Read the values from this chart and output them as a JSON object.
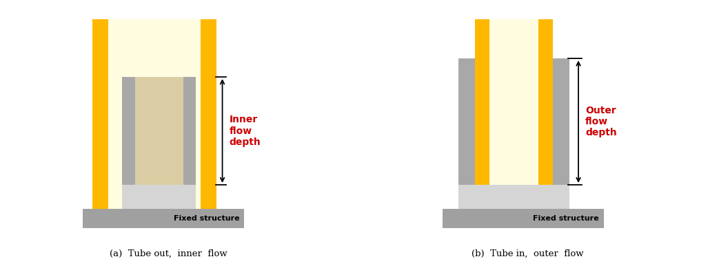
{
  "fig_width": 10.43,
  "fig_height": 3.93,
  "dpi": 100,
  "bg_color": "#ffffff",
  "colors": {
    "yellow_tube": "#FFB800",
    "yellow_light": "#FFFCE0",
    "tan_water": "#CDB98A",
    "tan_water_alpha": 0.7,
    "gray_wall": "#A8A8A8",
    "gray_base": "#A0A0A0",
    "light_gray_sediment": "#D5D5D5",
    "arrow_color": "#000000",
    "label_color": "#CC0000",
    "fixed_text_color": "#000000",
    "white": "#ffffff"
  },
  "caption_a": "(a)  Tube out,  inner  flow",
  "caption_b": "(b)  Tube in,  outer  flow",
  "label_a": "Inner\nflow\ndepth",
  "label_b": "Outer\nflow\ndepth",
  "fixed_label": "Fixed structure"
}
